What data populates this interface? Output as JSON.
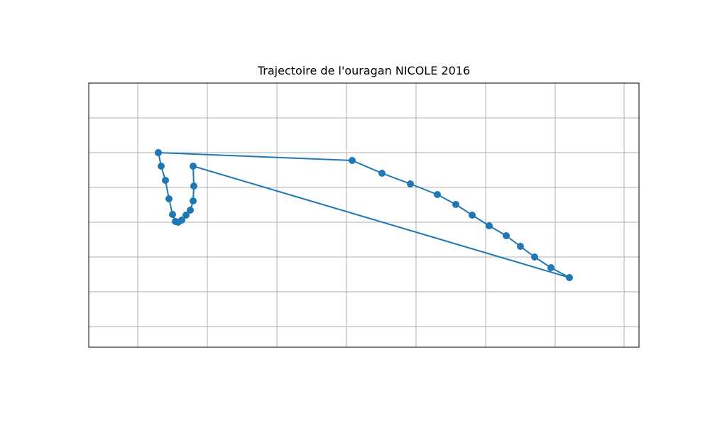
{
  "chart_data": {
    "type": "line",
    "title": "Trajectoire de l'ouragan NICOLE 2016",
    "xlabel": "",
    "ylabel": "",
    "xlim": [
      0,
      775
    ],
    "ylim": [
      372,
      0
    ],
    "grid": true,
    "x_gridlines": [
      69,
      167,
      265,
      363,
      461,
      559,
      657,
      754
    ],
    "y_gridlines": [
      49,
      98,
      147,
      196,
      245,
      294,
      343
    ],
    "series": [
      {
        "color": "#1f77b4",
        "points": [
          [
            98,
            98
          ],
          [
            102,
            117
          ],
          [
            108,
            137
          ],
          [
            113,
            163
          ],
          [
            118,
            185
          ],
          [
            122,
            195
          ],
          [
            126,
            196
          ],
          [
            131,
            193
          ],
          [
            137,
            186
          ],
          [
            143,
            179
          ],
          [
            147,
            166
          ],
          [
            148,
            145
          ],
          [
            147,
            117
          ],
          [
            677,
            274
          ],
          [
            651,
            260
          ],
          [
            628,
            245
          ],
          [
            608,
            230
          ],
          [
            588,
            215
          ],
          [
            564,
            201
          ],
          [
            540,
            186
          ],
          [
            517,
            171
          ],
          [
            491,
            157
          ],
          [
            453,
            142
          ],
          [
            413,
            127
          ],
          [
            371,
            109
          ],
          [
            98,
            98
          ]
        ]
      }
    ]
  }
}
